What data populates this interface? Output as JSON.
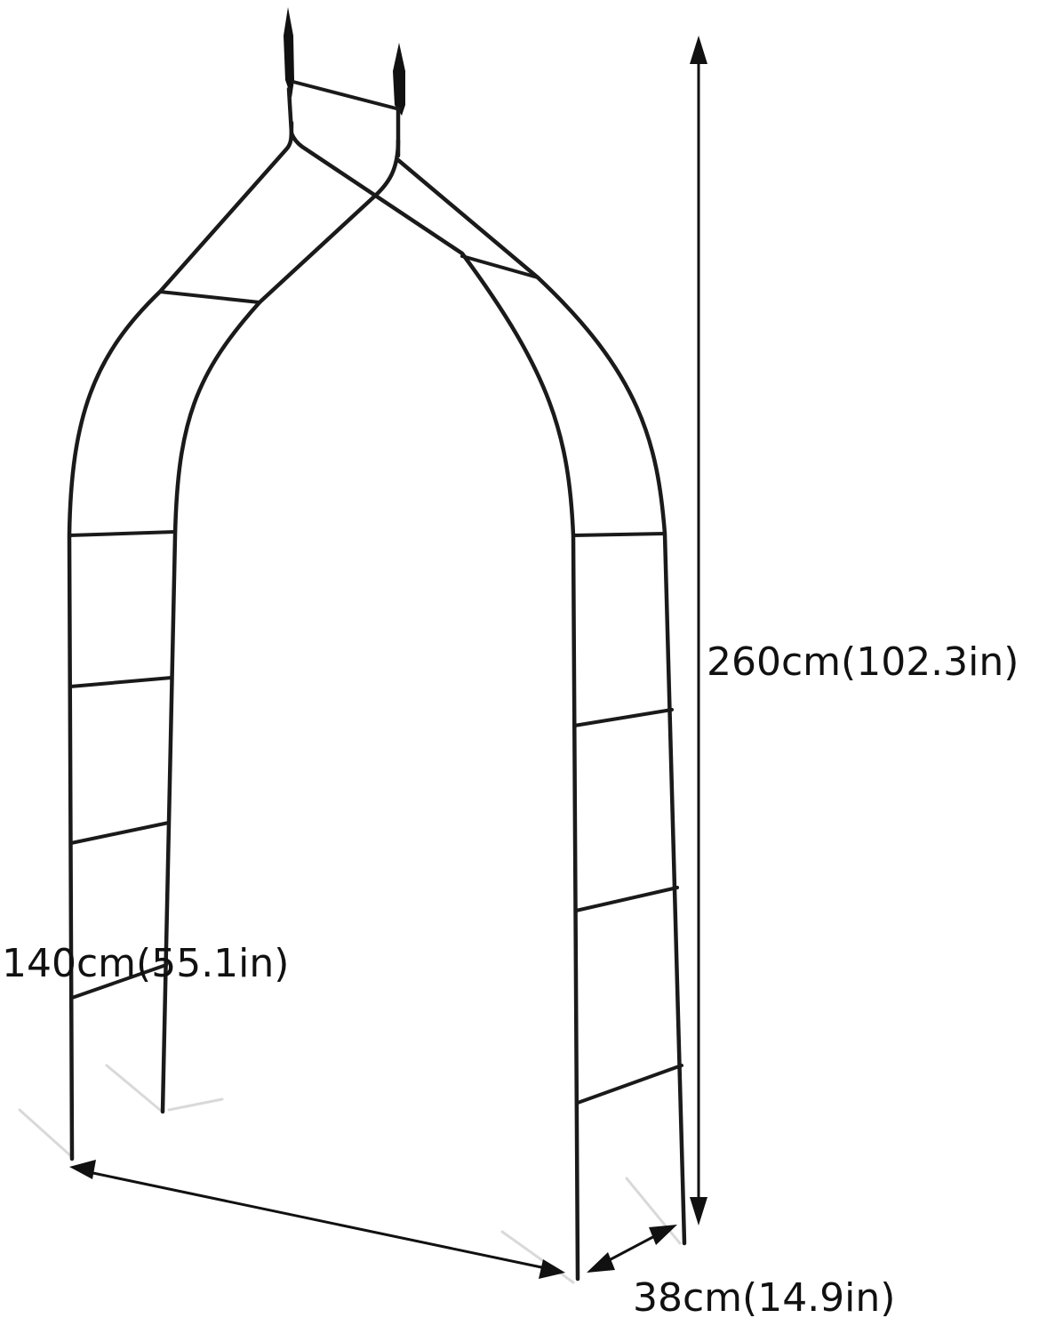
{
  "dimensions": {
    "height": "260cm(102.3in)",
    "width": "140cm(55.1in)",
    "depth": "38cm(14.9in)"
  },
  "colors": {
    "frame": "#1a1a1a",
    "dimension_lines": "#111111",
    "background": "#ffffff"
  }
}
